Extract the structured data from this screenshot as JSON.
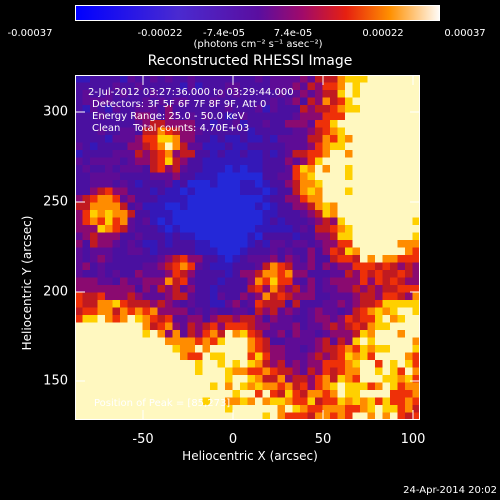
{
  "colorbar": {
    "ticks": [
      "-0.00037",
      "-0.00022",
      "-7.4e-05",
      "7.4e-05",
      "0.00022",
      "0.00037"
    ],
    "units": "(photons cm⁻² s⁻¹ asec⁻²)",
    "range": [
      -0.00037,
      0.00037
    ]
  },
  "title": "Reconstructed RHESSI Image",
  "info": {
    "time": "2-Jul-2012 03:27:36.000 to 03:29:44.000",
    "detectors": "Detectors: 3F 5F 6F 7F 8F 9F, Att 0",
    "energy": "Energy Range: 25.0 - 50.0 keV",
    "clean": "Clean    Total counts: 4.70E+03",
    "peak": "Position of Peak = [85,273]"
  },
  "chart_data": {
    "type": "heatmap",
    "title": "Reconstructed RHESSI Image",
    "xlabel": "Heliocentric X (arcsec)",
    "ylabel": "Heliocentric Y (arcsec)",
    "xlim": [
      -88,
      104
    ],
    "ylim": [
      128,
      320
    ],
    "xticks": [
      "-50",
      "0",
      "50",
      "100"
    ],
    "yticks": [
      "150",
      "200",
      "250",
      "300"
    ],
    "peak": [
      85,
      273
    ]
  },
  "footer": "24-Apr-2014 20:02"
}
